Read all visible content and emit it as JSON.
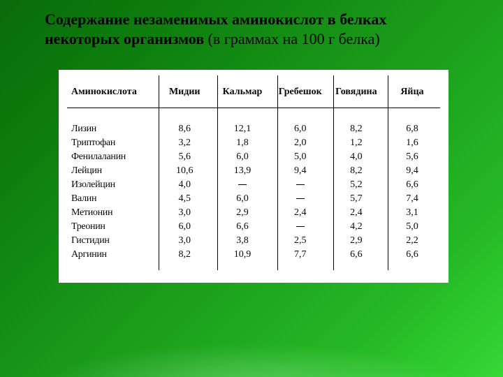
{
  "title": {
    "bold": "Содержание незаменимых аминокислот в белках некоторых организмов",
    "normal": " (в граммах на 100 г белка)"
  },
  "table": {
    "type": "table",
    "background_color": "#ffffff",
    "text_color": "#000000",
    "header_fontsize": 14,
    "body_fontsize": 14,
    "columns": [
      "Аминокислота",
      "Мидии",
      "Кальмар",
      "Гребешок",
      "Говядина",
      "Яйца"
    ],
    "col_widths_pct": [
      24,
      15,
      16,
      15,
      15,
      15
    ],
    "rows": [
      [
        "Лизин",
        "8,6",
        "12,1",
        "6,0",
        "8,2",
        "6,8"
      ],
      [
        "Триптофан",
        "3,2",
        "1,8",
        "2,0",
        "1,2",
        "1,6"
      ],
      [
        "Фенилаланин",
        "5,6",
        "6,0",
        "5,0",
        "4,0",
        "5,6"
      ],
      [
        "Лейцин",
        "10,6",
        "13,9",
        "9,4",
        "8,2",
        "9,4"
      ],
      [
        "Изолейцин",
        "4,0",
        "—",
        "—",
        "5,2",
        "6,6"
      ],
      [
        "Валин",
        "4,5",
        "6,0",
        "—",
        "5,7",
        "7,4"
      ],
      [
        "Метионин",
        "3,0",
        "2,9",
        "2,4",
        "2,4",
        "3,1"
      ],
      [
        "Треонин",
        "6,0",
        "6,6",
        "—",
        "4,2",
        "5,0"
      ],
      [
        "Гистидин",
        "3,0",
        "3,8",
        "2,5",
        "2,9",
        "2,2"
      ],
      [
        "Аргинин",
        "8,2",
        "10,9",
        "7,7",
        "6,6",
        "6,6"
      ]
    ],
    "separator_positions_pct": [
      24.5,
      40.2,
      56.3,
      71.3,
      86.0
    ]
  }
}
